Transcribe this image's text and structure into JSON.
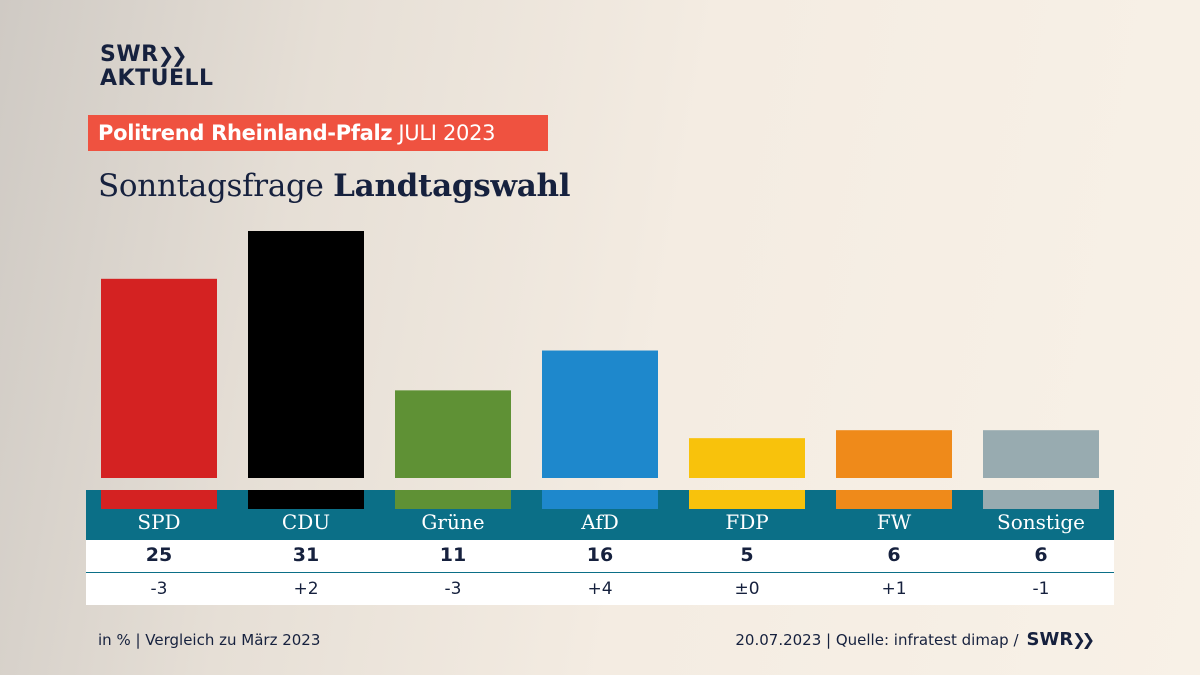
{
  "logo": {
    "line1": "SWR",
    "line2": "AKTUELL"
  },
  "banner": {
    "bold": "Politrend Rheinland-Pfalz",
    "rest": "JULI 2023"
  },
  "title": {
    "part1": "Sonntagsfrage ",
    "part2": "Landtagswahl"
  },
  "chart_data": {
    "type": "bar",
    "categories": [
      "SPD",
      "CDU",
      "Grüne",
      "AfD",
      "FDP",
      "FW",
      "Sonstige"
    ],
    "values": [
      25,
      31,
      11,
      16,
      5,
      6,
      6
    ],
    "changes": [
      "-3",
      "+2",
      "-3",
      "+4",
      "±0",
      "+1",
      "-1"
    ],
    "colors": [
      "#d42222",
      "#000000",
      "#5f9135",
      "#1e88cc",
      "#f8c20c",
      "#ef8a1a",
      "#98abb0"
    ],
    "ylim": [
      0,
      31
    ],
    "grid": false,
    "legend": "none"
  },
  "footer": {
    "left": "in % | Vergleich zu März 2023",
    "right": "20.07.2023 | Quelle: infratest dimap /",
    "logo": "SWR"
  },
  "colors": {
    "banner": "#ef5240",
    "table_header": "#0b6f87",
    "text": "#16213e"
  }
}
